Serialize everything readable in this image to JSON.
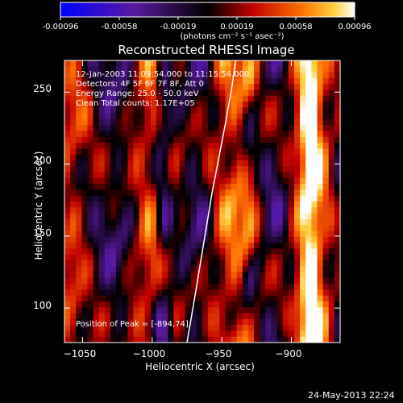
{
  "colorbar": {
    "ticks": [
      "-0.00096",
      "-0.00058",
      "-0.00019",
      "0.00019",
      "0.00058",
      "0.00096"
    ],
    "unit_label": "(photons cm⁻² s⁻¹ asec⁻²)",
    "range": [
      -0.00096,
      0.00096
    ]
  },
  "chart_data": {
    "type": "heatmap",
    "title": "Reconstructed RHESSI Image",
    "xlabel": "Heliocentric X (arcsec)",
    "ylabel": "Heliocentric Y (arcsec)",
    "xlim": [
      -1063,
      -865
    ],
    "ylim": [
      76,
      272
    ],
    "x_ticks": [
      -1050,
      -1000,
      -950,
      -900
    ],
    "y_ticks": [
      100,
      150,
      200,
      250
    ],
    "x_tick_labels": [
      "−1050",
      "−1000",
      "−950",
      "−900"
    ],
    "y_tick_labels": [
      "100",
      "150",
      "200",
      "250"
    ],
    "peak": [
      -894,
      74
    ],
    "limb_curve_x": [
      -975,
      -969,
      -963,
      -957,
      -952,
      -948,
      -943,
      -940
    ],
    "limb_curve_y": [
      76,
      110,
      145,
      180,
      205,
      225,
      252,
      272
    ],
    "annotations": {
      "time_range": "12-Jan-2003 11:09:54.000 to 11:15:54.000",
      "detectors": "Detectors: 4F 5F 6F 7F 8F, Att 0",
      "energy": "Energy Range: 25.0 - 50.0 keV",
      "method": "Clean     Total counts: 1.17E+05",
      "peak_label": "Position of Peak = [-894,74]"
    }
  },
  "footer": {
    "timestamp": "24-May-2013 22:24"
  }
}
